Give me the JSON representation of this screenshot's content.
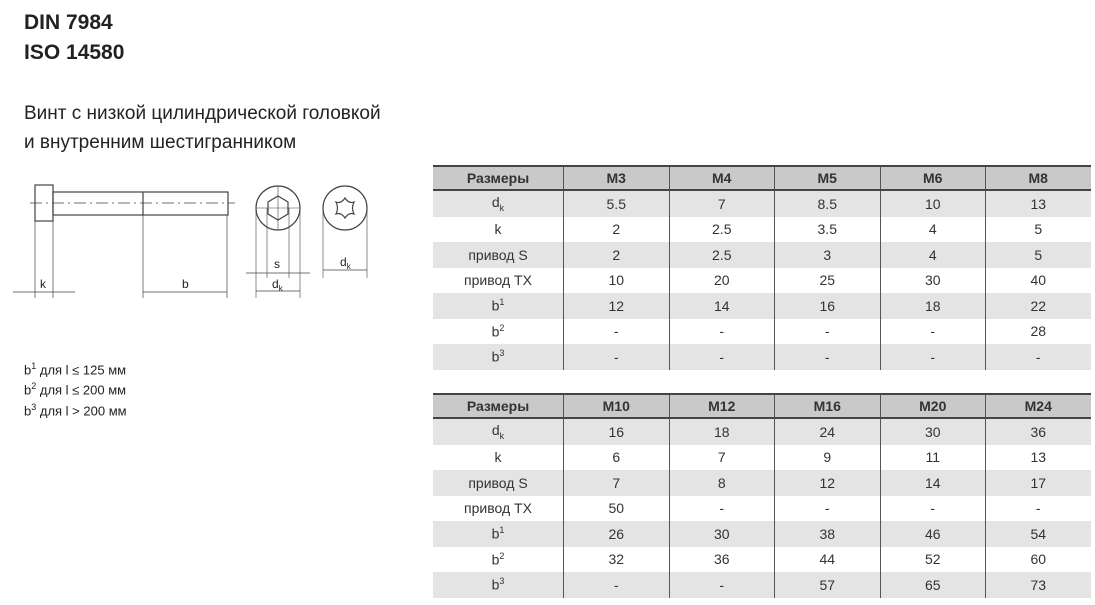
{
  "title": {
    "line1": "DIN 7984",
    "line2": "ISO 14580"
  },
  "subtitle": {
    "line1": "Винт с низкой цилиндрической головкой",
    "line2": "и внутренним шестигранником"
  },
  "drawing": {
    "labels": {
      "k": "k",
      "b": "b",
      "s": "s",
      "dk": "d",
      "dk_sub": "k"
    }
  },
  "notes": [
    {
      "b": "b",
      "sup": "1",
      "text": " для l ≤ 125 мм"
    },
    {
      "b": "b",
      "sup": "2",
      "text": " для l ≤ 200 мм"
    },
    {
      "b": "b",
      "sup": "3",
      "text": " для l > 200 мм"
    }
  ],
  "tables": [
    {
      "headers": [
        "Размеры",
        "M3",
        "M4",
        "M5",
        "M6",
        "M8"
      ],
      "rows": [
        {
          "label": "d",
          "sub": "k",
          "values": [
            "5.5",
            "7",
            "8.5",
            "10",
            "13"
          ]
        },
        {
          "label": "k",
          "values": [
            "2",
            "2.5",
            "3.5",
            "4",
            "5"
          ]
        },
        {
          "label": "привод S",
          "values": [
            "2",
            "2.5",
            "3",
            "4",
            "5"
          ]
        },
        {
          "label": "привод TX",
          "values": [
            "10",
            "20",
            "25",
            "30",
            "40"
          ]
        },
        {
          "label": "b",
          "sup": "1",
          "values": [
            "12",
            "14",
            "16",
            "18",
            "22"
          ]
        },
        {
          "label": "b",
          "sup": "2",
          "values": [
            "-",
            "-",
            "-",
            "-",
            "28"
          ]
        },
        {
          "label": "b",
          "sup": "3",
          "values": [
            "-",
            "-",
            "-",
            "-",
            "-"
          ]
        }
      ]
    },
    {
      "headers": [
        "Размеры",
        "M10",
        "M12",
        "M16",
        "M20",
        "M24"
      ],
      "rows": [
        {
          "label": "d",
          "sub": "k",
          "values": [
            "16",
            "18",
            "24",
            "30",
            "36"
          ]
        },
        {
          "label": "k",
          "values": [
            "6",
            "7",
            "9",
            "11",
            "13"
          ]
        },
        {
          "label": "привод S",
          "values": [
            "7",
            "8",
            "12",
            "14",
            "17"
          ]
        },
        {
          "label": "привод TX",
          "values": [
            "50",
            "-",
            "-",
            "-",
            "-"
          ]
        },
        {
          "label": "b",
          "sup": "1",
          "values": [
            "26",
            "30",
            "38",
            "46",
            "54"
          ]
        },
        {
          "label": "b",
          "sup": "2",
          "values": [
            "32",
            "36",
            "44",
            "52",
            "60"
          ]
        },
        {
          "label": "b",
          "sup": "3",
          "values": [
            "-",
            "-",
            "57",
            "65",
            "73"
          ]
        }
      ]
    }
  ]
}
